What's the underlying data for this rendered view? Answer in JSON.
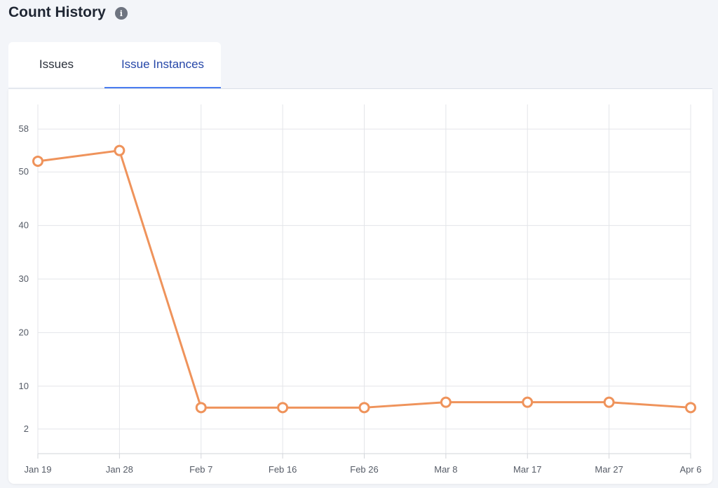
{
  "header": {
    "title": "Count History",
    "info_icon": "info-icon"
  },
  "tabs": [
    {
      "label": "Issues",
      "active": false
    },
    {
      "label": "Issue Instances",
      "active": true
    }
  ],
  "colors": {
    "line": "#ef935b",
    "active_tab": "#2647a8",
    "tab_underline": "#4a7cf0"
  },
  "chart_data": {
    "type": "line",
    "categories": [
      "Jan 19",
      "Jan 28",
      "Feb 7",
      "Feb 16",
      "Feb 26",
      "Mar 8",
      "Mar 17",
      "Mar 27",
      "Apr 6"
    ],
    "yticks": [
      2,
      10,
      20,
      30,
      40,
      50,
      58
    ],
    "ylim": [
      -2.6,
      62.6
    ],
    "grid": true,
    "series": [
      {
        "values": [
          52,
          54,
          6,
          6,
          6,
          7,
          7,
          7,
          6
        ]
      }
    ]
  }
}
